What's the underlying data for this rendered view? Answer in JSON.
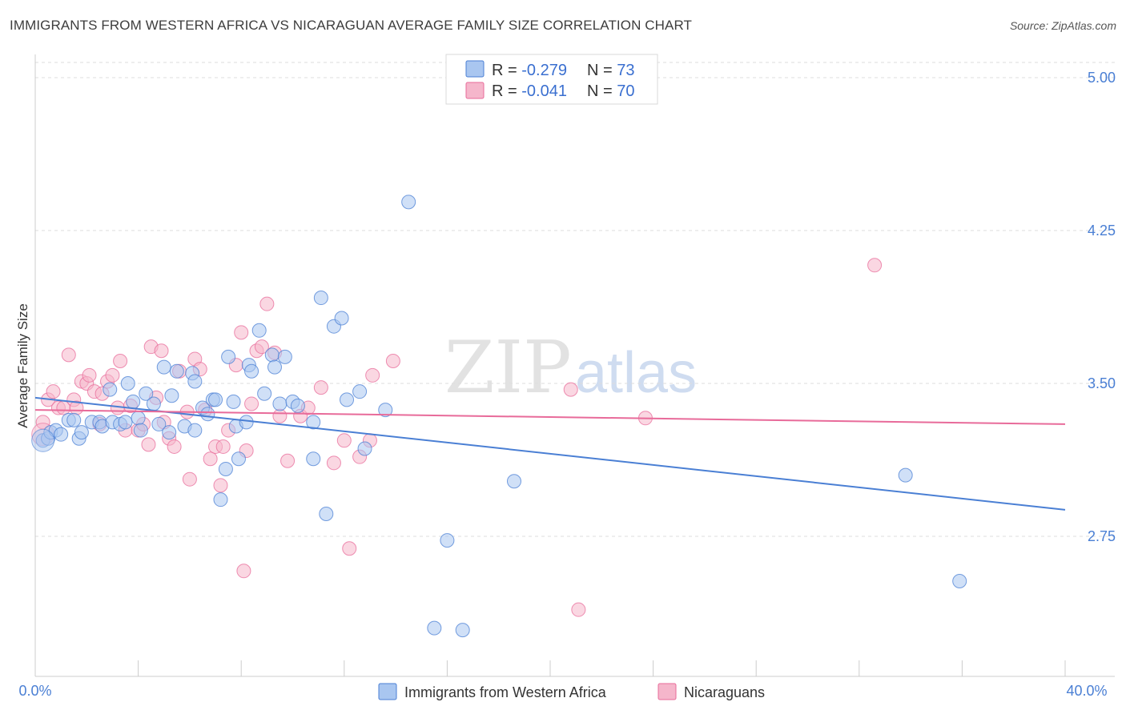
{
  "header": {
    "title": "IMMIGRANTS FROM WESTERN AFRICA VS NICARAGUAN AVERAGE FAMILY SIZE CORRELATION CHART",
    "source": "Source: ZipAtlas.com"
  },
  "watermark": {
    "zip": "ZIP",
    "atlas": "atlas"
  },
  "chart_data": {
    "type": "scatter",
    "title": "IMMIGRANTS FROM WESTERN AFRICA VS NICARAGUAN AVERAGE FAMILY SIZE CORRELATION CHART",
    "ylabel": "Average Family Size",
    "xlabel": "",
    "xlim": [
      0,
      40
    ],
    "ylim": [
      2.0,
      5.2
    ],
    "x_tick_labels": [
      "0.0%",
      "40.0%"
    ],
    "y_ticks": [
      2.75,
      3.5,
      4.25,
      5.0
    ],
    "y_tick_labels": [
      "2.75",
      "3.50",
      "4.25",
      "5.00"
    ],
    "grid": "horizontal dashed",
    "legend_position": "top-center",
    "colors": {
      "blue": "#4a7fd4",
      "pink": "#e86b9a",
      "blue_fill": "#a9c6f0",
      "pink_fill": "#f5b6cb"
    },
    "stats": [
      {
        "r_label": "R = ",
        "r": "-0.279",
        "n_label": "N = ",
        "n": "73"
      },
      {
        "r_label": "R = ",
        "r": "-0.041",
        "n_label": "N = ",
        "n": "70"
      }
    ],
    "series": [
      {
        "name": "Immigrants from Western Africa",
        "color": "#4a7fd4",
        "trend": {
          "x": [
            0,
            40
          ],
          "y": [
            3.43,
            2.88
          ]
        },
        "points": [
          [
            0.3,
            3.22
          ],
          [
            0.5,
            3.23
          ],
          [
            0.6,
            3.26
          ],
          [
            0.8,
            3.27
          ],
          [
            1.0,
            3.25
          ],
          [
            1.3,
            3.32
          ],
          [
            1.5,
            3.32
          ],
          [
            1.7,
            3.23
          ],
          [
            1.8,
            3.26
          ],
          [
            2.2,
            3.31
          ],
          [
            2.5,
            3.31
          ],
          [
            2.6,
            3.29
          ],
          [
            2.9,
            3.47
          ],
          [
            3.0,
            3.31
          ],
          [
            3.3,
            3.3
          ],
          [
            3.5,
            3.31
          ],
          [
            3.6,
            3.5
          ],
          [
            3.8,
            3.41
          ],
          [
            4.0,
            3.33
          ],
          [
            4.1,
            3.27
          ],
          [
            4.3,
            3.45
          ],
          [
            4.6,
            3.4
          ],
          [
            4.8,
            3.3
          ],
          [
            5.0,
            3.58
          ],
          [
            5.2,
            3.26
          ],
          [
            5.3,
            3.44
          ],
          [
            5.5,
            3.56
          ],
          [
            5.8,
            3.29
          ],
          [
            6.1,
            3.55
          ],
          [
            6.2,
            3.51
          ],
          [
            6.2,
            3.27
          ],
          [
            6.5,
            3.38
          ],
          [
            6.7,
            3.35
          ],
          [
            6.9,
            3.42
          ],
          [
            7.0,
            3.42
          ],
          [
            7.2,
            2.93
          ],
          [
            7.4,
            3.08
          ],
          [
            7.5,
            3.63
          ],
          [
            7.7,
            3.41
          ],
          [
            7.8,
            3.29
          ],
          [
            7.9,
            3.13
          ],
          [
            8.2,
            3.31
          ],
          [
            8.3,
            3.59
          ],
          [
            8.4,
            3.56
          ],
          [
            8.7,
            3.76
          ],
          [
            8.9,
            3.45
          ],
          [
            9.2,
            3.64
          ],
          [
            9.3,
            3.58
          ],
          [
            9.5,
            3.4
          ],
          [
            9.7,
            3.63
          ],
          [
            10.0,
            3.41
          ],
          [
            10.2,
            3.39
          ],
          [
            10.8,
            3.31
          ],
          [
            10.8,
            3.13
          ],
          [
            11.1,
            3.92
          ],
          [
            11.3,
            2.86
          ],
          [
            11.6,
            3.78
          ],
          [
            11.9,
            3.82
          ],
          [
            12.1,
            3.42
          ],
          [
            12.6,
            3.46
          ],
          [
            12.8,
            3.18
          ],
          [
            13.6,
            3.37
          ],
          [
            14.5,
            4.39
          ],
          [
            15.5,
            2.3
          ],
          [
            16.0,
            2.73
          ],
          [
            16.6,
            2.29
          ],
          [
            18.6,
            3.02
          ],
          [
            33.8,
            3.05
          ],
          [
            35.9,
            2.53
          ]
        ],
        "big_point": [
          0.3,
          3.22
        ]
      },
      {
        "name": "Nicaraguans",
        "color": "#e86b9a",
        "trend": {
          "x": [
            0,
            40
          ],
          "y": [
            3.37,
            3.3
          ]
        },
        "points": [
          [
            0.3,
            3.31
          ],
          [
            0.5,
            3.42
          ],
          [
            0.7,
            3.46
          ],
          [
            0.9,
            3.38
          ],
          [
            1.1,
            3.38
          ],
          [
            1.3,
            3.64
          ],
          [
            1.5,
            3.42
          ],
          [
            1.6,
            3.38
          ],
          [
            1.8,
            3.51
          ],
          [
            2.0,
            3.5
          ],
          [
            2.1,
            3.54
          ],
          [
            2.3,
            3.46
          ],
          [
            2.5,
            3.3
          ],
          [
            2.6,
            3.45
          ],
          [
            2.8,
            3.51
          ],
          [
            3.0,
            3.54
          ],
          [
            3.2,
            3.38
          ],
          [
            3.3,
            3.61
          ],
          [
            3.5,
            3.27
          ],
          [
            3.7,
            3.39
          ],
          [
            4.0,
            3.27
          ],
          [
            4.2,
            3.3
          ],
          [
            4.4,
            3.2
          ],
          [
            4.5,
            3.68
          ],
          [
            4.7,
            3.43
          ],
          [
            4.9,
            3.66
          ],
          [
            5.0,
            3.31
          ],
          [
            5.2,
            3.23
          ],
          [
            5.4,
            3.19
          ],
          [
            5.6,
            3.56
          ],
          [
            5.9,
            3.36
          ],
          [
            6.0,
            3.03
          ],
          [
            6.2,
            3.62
          ],
          [
            6.4,
            3.57
          ],
          [
            6.6,
            3.37
          ],
          [
            6.8,
            3.13
          ],
          [
            7.0,
            3.19
          ],
          [
            7.2,
            3.0
          ],
          [
            7.3,
            3.19
          ],
          [
            7.5,
            3.27
          ],
          [
            7.8,
            3.59
          ],
          [
            8.0,
            3.75
          ],
          [
            8.2,
            3.17
          ],
          [
            8.4,
            3.4
          ],
          [
            8.6,
            3.66
          ],
          [
            8.8,
            3.68
          ],
          [
            9.0,
            3.89
          ],
          [
            9.3,
            3.65
          ],
          [
            9.5,
            3.34
          ],
          [
            9.8,
            3.12
          ],
          [
            10.3,
            3.34
          ],
          [
            10.6,
            3.38
          ],
          [
            11.1,
            3.48
          ],
          [
            11.6,
            3.11
          ],
          [
            12.0,
            3.22
          ],
          [
            12.2,
            2.69
          ],
          [
            12.6,
            3.14
          ],
          [
            13.0,
            3.22
          ],
          [
            13.1,
            3.54
          ],
          [
            13.9,
            3.61
          ],
          [
            8.1,
            2.58
          ],
          [
            20.8,
            3.47
          ],
          [
            21.1,
            2.39
          ],
          [
            23.7,
            3.33
          ],
          [
            32.6,
            4.08
          ]
        ],
        "big_point": [
          0.3,
          3.25
        ]
      }
    ]
  }
}
